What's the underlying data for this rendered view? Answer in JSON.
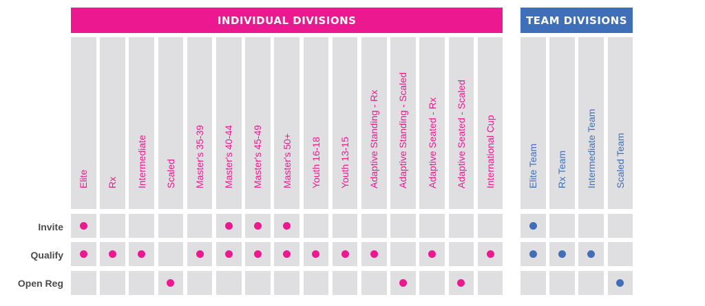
{
  "colors": {
    "individual": "#ec1890",
    "team": "#3e6fb8",
    "cell": "#dfdfe2",
    "row_label": "#4a4a4f"
  },
  "groups": [
    {
      "key": "individual",
      "title": "INDIVIDUAL DIVISIONS"
    },
    {
      "key": "team",
      "title": "TEAM DIVISIONS"
    }
  ],
  "chart_data": {
    "type": "table",
    "rows": [
      "Invite",
      "Qualify",
      "Open Reg"
    ],
    "columns": [
      {
        "label": "Elite",
        "group": "individual",
        "marks": [
          true,
          true,
          false
        ]
      },
      {
        "label": "Rx",
        "group": "individual",
        "marks": [
          false,
          true,
          false
        ]
      },
      {
        "label": "Intermediate",
        "group": "individual",
        "marks": [
          false,
          true,
          false
        ]
      },
      {
        "label": "Scaled",
        "group": "individual",
        "marks": [
          false,
          false,
          true
        ]
      },
      {
        "label": "Master's 35-39",
        "group": "individual",
        "marks": [
          false,
          true,
          false
        ]
      },
      {
        "label": "Master's 40-44",
        "group": "individual",
        "marks": [
          true,
          true,
          false
        ]
      },
      {
        "label": "Master's 45-49",
        "group": "individual",
        "marks": [
          true,
          true,
          false
        ]
      },
      {
        "label": "Master's 50+",
        "group": "individual",
        "marks": [
          true,
          true,
          false
        ]
      },
      {
        "label": "Youth 16-18",
        "group": "individual",
        "marks": [
          false,
          true,
          false
        ]
      },
      {
        "label": "Youth 13-15",
        "group": "individual",
        "marks": [
          false,
          true,
          false
        ]
      },
      {
        "label": "Adaptive Standing - Rx",
        "group": "individual",
        "marks": [
          false,
          true,
          false
        ]
      },
      {
        "label": "Adaptive Standing - Scaled",
        "group": "individual",
        "marks": [
          false,
          false,
          true
        ]
      },
      {
        "label": "Adaptive Seated - Rx",
        "group": "individual",
        "marks": [
          false,
          true,
          false
        ]
      },
      {
        "label": "Adaptive Seated - Scaled",
        "group": "individual",
        "marks": [
          false,
          false,
          true
        ]
      },
      {
        "label": "International Cup",
        "group": "individual",
        "marks": [
          false,
          true,
          false
        ]
      },
      {
        "label": "Elite Team",
        "group": "team",
        "marks": [
          true,
          true,
          false
        ]
      },
      {
        "label": "Rx Team",
        "group": "team",
        "marks": [
          false,
          true,
          false
        ]
      },
      {
        "label": "Intermediate Team",
        "group": "team",
        "marks": [
          false,
          true,
          false
        ]
      },
      {
        "label": "Scaled Team",
        "group": "team",
        "marks": [
          false,
          false,
          true
        ]
      }
    ]
  }
}
